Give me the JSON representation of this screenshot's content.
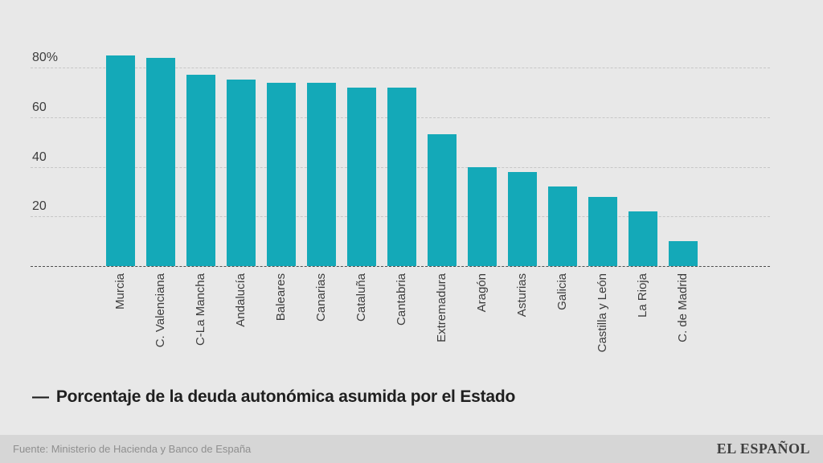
{
  "chart_data": {
    "type": "bar",
    "title": "Porcentaje de la deuda autonómica asumida por el Estado",
    "legend_marker": "—",
    "legend_position": "bottom",
    "categories": [
      "Murcia",
      "C. Valenciana",
      "C-La Mancha",
      "Andalucía",
      "Baleares",
      "Canarias",
      "Cataluña",
      "Cantabria",
      "Extremadura",
      "Aragón",
      "Asturias",
      "Galicia",
      "Castilla y León",
      "La Rioja",
      "C. de Madrid"
    ],
    "values": [
      85,
      84,
      77,
      75,
      74,
      74,
      72,
      72,
      53,
      40,
      38,
      32,
      28,
      22,
      10
    ],
    "unit": "%",
    "xlabel": "",
    "ylabel": "",
    "yticks": [
      {
        "value": 80,
        "label": "80%"
      },
      {
        "value": 60,
        "label": "60"
      },
      {
        "value": 40,
        "label": "40"
      },
      {
        "value": 20,
        "label": "20"
      }
    ],
    "ylim": [
      0,
      88
    ],
    "grid": "horizontal-dashed",
    "bar_color": "#14a9b8"
  },
  "footer": {
    "source": "Fuente: Ministerio de Hacienda y Banco de España",
    "brand": "EL ESPAÑOL"
  },
  "colors": {
    "background": "#e8e8e8",
    "footer_band": "#d6d6d6",
    "bar": "#14a9b8",
    "gridline": "#c7c7c7",
    "baseline": "#4d4d4d",
    "axis_text": "#3d3d3d",
    "title_text": "#1f1f1f",
    "source_text": "#8f8f8f",
    "brand_text": "#3f3f3f"
  }
}
